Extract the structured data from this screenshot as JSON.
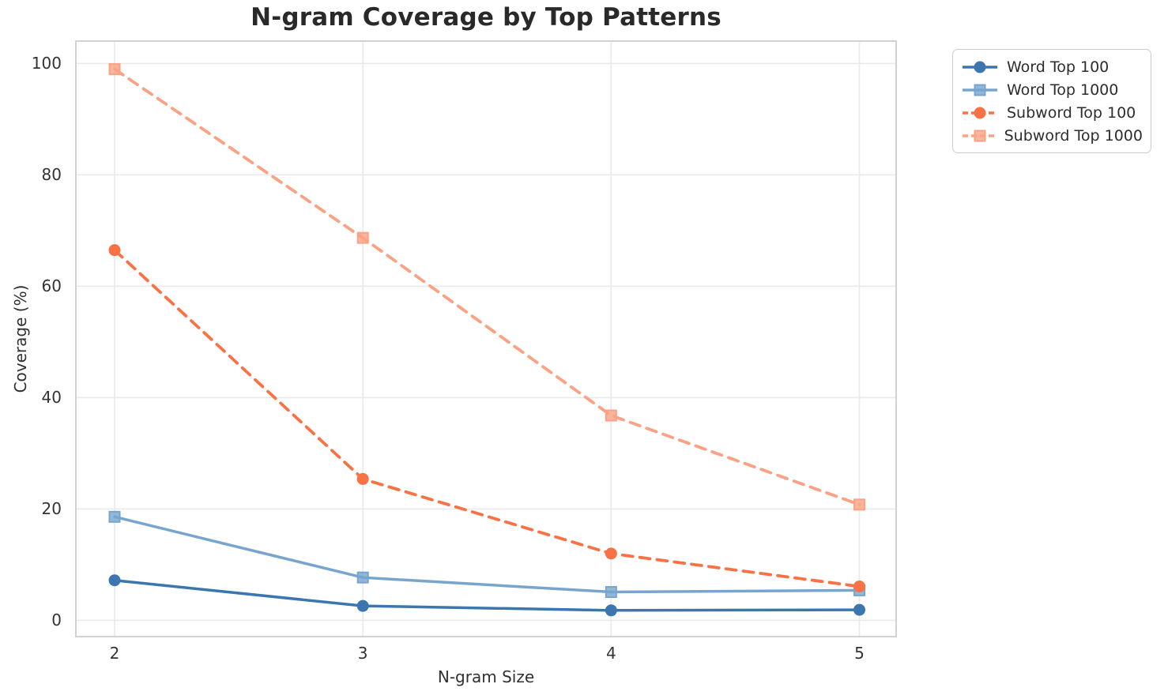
{
  "chart_data": {
    "type": "line",
    "title": "N-gram Coverage by Top Patterns",
    "xlabel": "N-gram Size",
    "ylabel": "Coverage (%)",
    "x": [
      2,
      3,
      4,
      5
    ],
    "xtick_labels": [
      "2",
      "3",
      "4",
      "5"
    ],
    "ytick_values": [
      0,
      20,
      40,
      60,
      80,
      100
    ],
    "ytick_labels": [
      "0",
      "20",
      "40",
      "60",
      "80",
      "100"
    ],
    "xlim": [
      1.844,
      5.148
    ],
    "ylim": [
      -2.91,
      104.04
    ],
    "grid": true,
    "legend_position": "outside-upper-right",
    "series": [
      {
        "name": "Word Top 100",
        "color": "#3b76af",
        "marker": "circle",
        "line": "solid",
        "values": [
          7.2,
          2.6,
          1.8,
          1.9
        ]
      },
      {
        "name": "Word Top 1000",
        "color": "#77a5ce",
        "marker": "square",
        "line": "solid",
        "values": [
          18.6,
          7.7,
          5.1,
          5.4
        ]
      },
      {
        "name": "Subword Top 100",
        "color": "#f97245",
        "marker": "circle",
        "line": "dashed",
        "values": [
          66.5,
          25.4,
          12.0,
          6.1
        ]
      },
      {
        "name": "Subword Top 1000",
        "color": "#faa283",
        "marker": "square",
        "line": "dashed",
        "values": [
          99.0,
          68.7,
          36.8,
          20.8
        ]
      }
    ],
    "colors": {
      "grid": "#e9e9ee",
      "spine": "#d2d2d6",
      "tick_text": "#333333",
      "title_text": "#292929",
      "background": "#ffffff"
    }
  }
}
